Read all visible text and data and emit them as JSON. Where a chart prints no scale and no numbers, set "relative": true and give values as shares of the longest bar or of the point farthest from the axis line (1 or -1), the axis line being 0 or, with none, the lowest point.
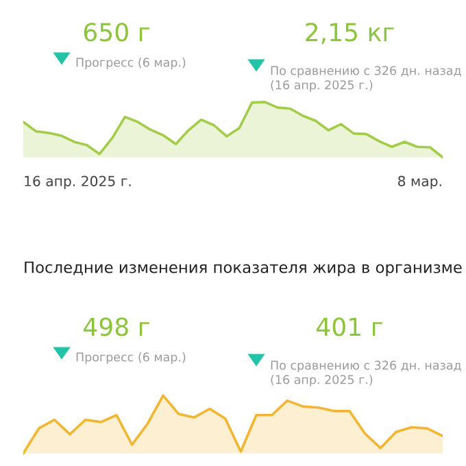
{
  "chart_data": [
    {
      "type": "area",
      "relative": true,
      "color": "#a3cc4a",
      "categories": [
        null,
        null,
        null,
        null,
        null,
        null,
        null,
        null,
        null,
        null,
        null,
        null,
        null,
        null,
        null,
        null,
        null,
        null,
        null,
        null,
        null,
        null,
        null,
        null,
        null,
        null,
        null,
        null,
        null,
        null,
        null,
        null,
        null,
        null
      ],
      "values": [
        0.64,
        0.47,
        0.44,
        0.39,
        0.28,
        0.22,
        0.06,
        0.35,
        0.73,
        0.64,
        0.5,
        0.4,
        0.24,
        0.49,
        0.68,
        0.58,
        0.38,
        0.53,
        0.99,
        1,
        0.9,
        0.88,
        0.75,
        0.66,
        0.49,
        0.6,
        0.43,
        0.42,
        0.29,
        0.19,
        0.28,
        0.19,
        0.18,
        0
      ],
      "annotations": [
        "650 г",
        "Прогресс (6 мар.)",
        "2,15 кг",
        "По сравнению с 326 дн. назад\n(16 апр. 2025 г.)",
        "16 апр. 2025 г.",
        "8 мар."
      ]
    },
    {
      "type": "area",
      "relative": true,
      "color": "#f2b632",
      "title": "Последние изменения показателя жира в организме",
      "categories": [
        null,
        null,
        null,
        null,
        null,
        null,
        null,
        null,
        null,
        null,
        null,
        null,
        null,
        null,
        null,
        null,
        null,
        null,
        null,
        null,
        null,
        null,
        null,
        null,
        null,
        null,
        null,
        null
      ],
      "values": [
        0,
        0.43,
        0.58,
        0.33,
        0.58,
        0.54,
        0.66,
        0.15,
        0.51,
        1,
        0.68,
        0.62,
        0.77,
        0.6,
        0.03,
        0.66,
        0.66,
        0.91,
        0.81,
        0.79,
        0.73,
        0.73,
        0.34,
        0.09,
        0.37,
        0.45,
        0.43,
        0.3
      ],
      "annotations": [
        "498 г",
        "Прогресс (6 мар.)",
        "401 г",
        "По сравнению с 326 дн. назад\n(16 апр. 2025 г.)"
      ]
    }
  ]
}
